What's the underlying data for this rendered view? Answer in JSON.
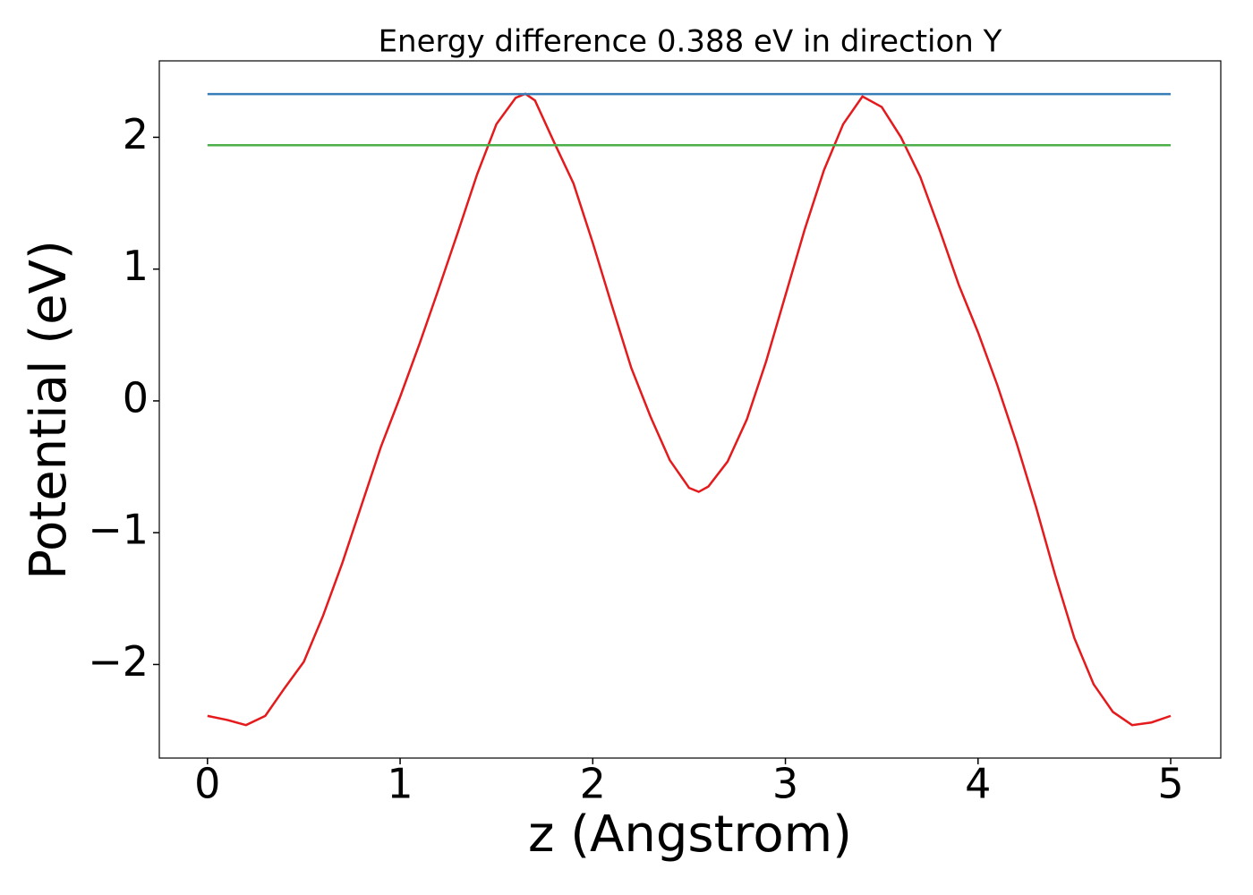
{
  "chart_data": {
    "type": "line",
    "title": "Energy difference 0.388 eV in direction Y",
    "x_label": "z (Angstrom)",
    "y_label": "Potential (eV)",
    "xlim": [
      -0.25,
      5.26
    ],
    "ylim": [
      -2.71,
      2.58
    ],
    "xticks": [
      0,
      1,
      2,
      3,
      4,
      5
    ],
    "yticks": [
      {
        "value": -2,
        "label": "−2"
      },
      {
        "value": -1,
        "label": "−1"
      },
      0,
      1,
      2
    ],
    "grid": false,
    "series": [
      {
        "color": "#e41a1c",
        "x": [
          0,
          0.1,
          0.2,
          0.3,
          0.4,
          0.5,
          0.6,
          0.7,
          0.8,
          0.9,
          1.0,
          1.1,
          1.2,
          1.3,
          1.4,
          1.5,
          1.6,
          1.65,
          1.7,
          1.8,
          1.9,
          2.0,
          2.1,
          2.2,
          2.3,
          2.4,
          2.5,
          2.55,
          2.6,
          2.7,
          2.8,
          2.9,
          3.0,
          3.1,
          3.2,
          3.3,
          3.4,
          3.5,
          3.6,
          3.7,
          3.8,
          3.9,
          4.0,
          4.1,
          4.2,
          4.3,
          4.4,
          4.5,
          4.6,
          4.7,
          4.8,
          4.9,
          5.0
        ],
        "values": [
          -2.39,
          -2.42,
          -2.46,
          -2.39,
          -2.18,
          -1.98,
          -1.63,
          -1.23,
          -0.79,
          -0.35,
          0.03,
          0.43,
          0.85,
          1.28,
          1.72,
          2.1,
          2.3,
          2.33,
          2.28,
          1.96,
          1.65,
          1.2,
          0.72,
          0.25,
          -0.12,
          -0.45,
          -0.66,
          -0.69,
          -0.65,
          -0.46,
          -0.14,
          0.3,
          0.8,
          1.3,
          1.75,
          2.1,
          2.31,
          2.23,
          2.0,
          1.7,
          1.3,
          0.88,
          0.52,
          0.12,
          -0.32,
          -0.8,
          -1.32,
          -1.8,
          -2.15,
          -2.36,
          -2.46,
          -2.44,
          -2.39
        ]
      },
      {
        "color": "#377eb8",
        "x": [
          0,
          5
        ],
        "values": [
          2.328,
          2.328
        ]
      },
      {
        "color": "#4daf4a",
        "x": [
          0,
          5
        ],
        "values": [
          1.94,
          1.94
        ]
      }
    ]
  }
}
